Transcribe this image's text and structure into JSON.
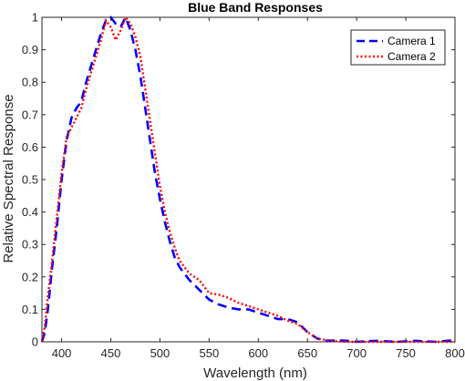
{
  "chart_data": {
    "type": "line",
    "title": "Blue Band Responses",
    "xlabel": "Wavelength (nm)",
    "ylabel": "Relative Spectral Response",
    "xlim": [
      380,
      800
    ],
    "ylim": [
      0,
      1
    ],
    "x_ticks": [
      400,
      450,
      500,
      550,
      600,
      650,
      700,
      750,
      800
    ],
    "y_ticks": [
      0,
      0.1,
      0.2,
      0.3,
      0.4,
      0.5,
      0.6,
      0.7,
      0.8,
      0.9,
      1
    ],
    "y_tick_labels": [
      "0",
      "0.1",
      "0.2",
      "0.3",
      "0.4",
      "0.5",
      "0.6",
      "0.7",
      "0.8",
      "0.9",
      "1"
    ],
    "grid": false,
    "legend_position": "top-right",
    "series": [
      {
        "name": "Camera 1",
        "color": "#0000ff",
        "style": "dashed",
        "x": [
          380,
          383,
          386,
          390,
          395,
          400,
          405,
          410,
          415,
          420,
          425,
          430,
          435,
          440,
          445,
          450,
          455,
          460,
          465,
          470,
          475,
          480,
          485,
          490,
          495,
          500,
          505,
          510,
          515,
          520,
          530,
          540,
          550,
          560,
          570,
          580,
          590,
          600,
          610,
          620,
          630,
          640,
          650,
          660,
          670,
          680,
          690,
          700,
          720,
          740,
          760,
          780,
          800
        ],
        "y": [
          0.0,
          0.03,
          0.1,
          0.22,
          0.35,
          0.5,
          0.62,
          0.69,
          0.72,
          0.74,
          0.8,
          0.85,
          0.9,
          0.95,
          0.99,
          1.0,
          0.98,
          0.97,
          1.0,
          0.96,
          0.9,
          0.82,
          0.72,
          0.62,
          0.52,
          0.44,
          0.37,
          0.31,
          0.26,
          0.23,
          0.19,
          0.16,
          0.13,
          0.115,
          0.105,
          0.1,
          0.1,
          0.09,
          0.08,
          0.07,
          0.07,
          0.06,
          0.03,
          0.01,
          0.003,
          0.005,
          0.003,
          0.0,
          0.003,
          0.0,
          0.003,
          0.0,
          0.005
        ]
      },
      {
        "name": "Camera 2",
        "color": "#ff0000",
        "style": "dotted",
        "x": [
          380,
          383,
          386,
          390,
          395,
          400,
          405,
          410,
          415,
          420,
          425,
          430,
          435,
          440,
          445,
          450,
          455,
          460,
          465,
          470,
          475,
          480,
          485,
          490,
          495,
          500,
          505,
          510,
          515,
          520,
          530,
          540,
          550,
          560,
          570,
          580,
          590,
          600,
          610,
          620,
          630,
          640,
          650,
          660,
          670,
          680,
          690,
          700,
          720,
          740,
          760,
          780,
          800
        ],
        "y": [
          0.0,
          0.05,
          0.14,
          0.24,
          0.38,
          0.52,
          0.63,
          0.66,
          0.69,
          0.72,
          0.78,
          0.83,
          0.88,
          0.93,
          0.99,
          0.97,
          0.93,
          0.96,
          1.0,
          0.98,
          0.94,
          0.88,
          0.78,
          0.68,
          0.58,
          0.48,
          0.4,
          0.34,
          0.29,
          0.25,
          0.21,
          0.19,
          0.15,
          0.145,
          0.135,
          0.12,
          0.11,
          0.1,
          0.09,
          0.08,
          0.065,
          0.055,
          0.03,
          0.01,
          0.005,
          0.002,
          0.0,
          0.0,
          0.0,
          0.0,
          0.0,
          0.0,
          0.0
        ]
      }
    ]
  }
}
